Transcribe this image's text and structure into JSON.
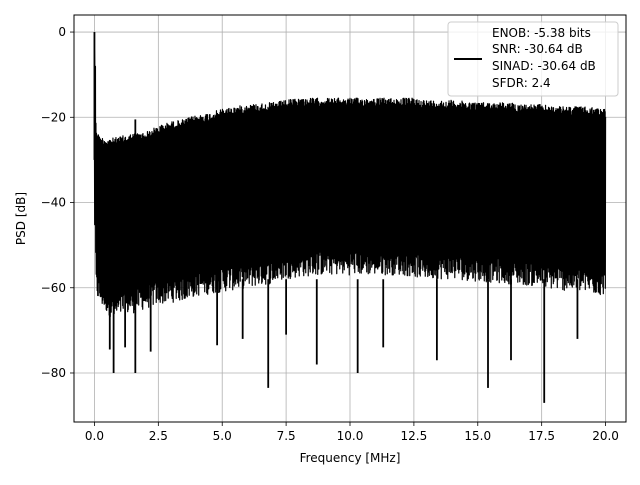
{
  "chart_data": {
    "type": "line",
    "title": "",
    "xlabel": "Frequency [MHz]",
    "ylabel": "PSD [dB]",
    "xlim": [
      -0.8,
      20.8
    ],
    "ylim": [
      -91.5,
      4.0
    ],
    "xticks": [
      0.0,
      2.5,
      5.0,
      7.5,
      10.0,
      12.5,
      15.0,
      17.5,
      20.0
    ],
    "xtick_labels": [
      "0.0",
      "2.5",
      "5.0",
      "7.5",
      "10.0",
      "12.5",
      "15.0",
      "17.5",
      "20.0"
    ],
    "yticks": [
      0,
      -20,
      -40,
      -60,
      -80
    ],
    "ytick_labels": [
      "0",
      "−20",
      "−40",
      "−60",
      "−80"
    ],
    "grid": true,
    "legend_position": "upper-right",
    "legend_entries": [
      "ENOB: -5.38 bits",
      "SNR: -30.64 dB",
      "SINAD: -30.64 dB",
      "SFDR: 2.4"
    ],
    "line_color": "#000000",
    "series": [
      {
        "name": "",
        "x": [
          0.0,
          0.03,
          0.06,
          0.2,
          0.5,
          0.8,
          1.0,
          1.5,
          2.0,
          2.5,
          3.0,
          3.5,
          4.0,
          4.5,
          5.0,
          6.0,
          7.0,
          7.5,
          8.0,
          9.0,
          10.0,
          11.0,
          12.0,
          12.5,
          13.0,
          14.0,
          15.0,
          16.0,
          17.0,
          17.5,
          18.0,
          19.0,
          20.0
        ],
        "upper": [
          -22.0,
          0.0,
          -22.0,
          -24.5,
          -25.0,
          -24.8,
          -24.5,
          -23.8,
          -23.5,
          -22.0,
          -21.0,
          -20.5,
          -19.5,
          -19.0,
          -18.0,
          -17.0,
          -16.5,
          -16.0,
          -15.5,
          -15.5,
          -15.5,
          -15.5,
          -15.5,
          -15.5,
          -16.0,
          -16.0,
          -16.5,
          -16.5,
          -17.0,
          -17.0,
          -17.5,
          -17.5,
          -18.0
        ],
        "lower": [
          -48.0,
          -45.0,
          -62.0,
          -64.0,
          -66.0,
          -68.0,
          -67.0,
          -66.0,
          -65.0,
          -64.0,
          -63.5,
          -63.0,
          -62.0,
          -61.5,
          -61.0,
          -60.0,
          -59.0,
          -58.0,
          -57.5,
          -57.0,
          -57.0,
          -57.0,
          -57.0,
          -57.5,
          -58.0,
          -58.0,
          -58.5,
          -59.0,
          -59.5,
          -60.0,
          -60.5,
          -61.0,
          -62.0
        ],
        "spikes": [
          {
            "x": 0.0,
            "y": 0.0
          },
          {
            "x": 0.6,
            "y": -74.5
          },
          {
            "x": 0.75,
            "y": -80.0
          },
          {
            "x": 1.2,
            "y": -74.0
          },
          {
            "x": 1.6,
            "y": -80.0
          },
          {
            "x": 1.6,
            "y": -20.5
          },
          {
            "x": 2.2,
            "y": -75.0
          },
          {
            "x": 4.8,
            "y": -73.5
          },
          {
            "x": 5.8,
            "y": -72.0
          },
          {
            "x": 6.8,
            "y": -83.5
          },
          {
            "x": 7.5,
            "y": -71.0
          },
          {
            "x": 8.7,
            "y": -78.0
          },
          {
            "x": 10.3,
            "y": -80.0
          },
          {
            "x": 11.3,
            "y": -74.0
          },
          {
            "x": 13.4,
            "y": -77.0
          },
          {
            "x": 15.4,
            "y": -83.5
          },
          {
            "x": 16.3,
            "y": -77.0
          },
          {
            "x": 17.6,
            "y": -87.0
          },
          {
            "x": 18.9,
            "y": -72.0
          }
        ]
      }
    ]
  }
}
